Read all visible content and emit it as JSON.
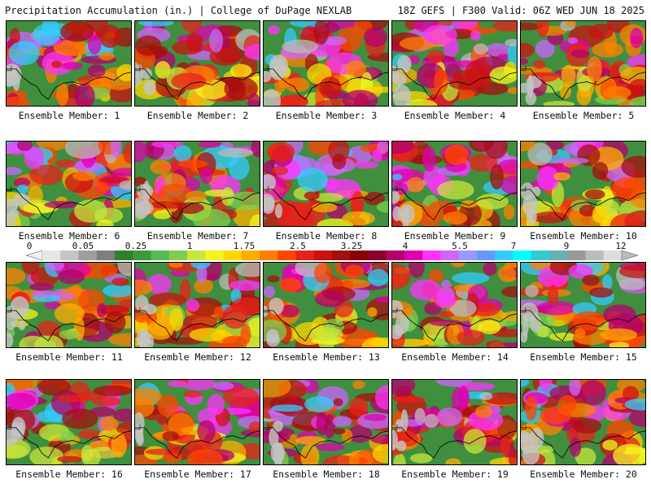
{
  "header": {
    "left_title": "Precipitation Accumulation (in.) | College of DuPage NEXLAB",
    "right_title": "18Z GEFS | F300 Valid: 06Z WED JUN 18 2025"
  },
  "panels": [
    {
      "label": "Ensemble Member: 1"
    },
    {
      "label": "Ensemble Member: 2"
    },
    {
      "label": "Ensemble Member: 3"
    },
    {
      "label": "Ensemble Member: 4"
    },
    {
      "label": "Ensemble Member: 5"
    },
    {
      "label": "Ensemble Member: 6"
    },
    {
      "label": "Ensemble Member: 7"
    },
    {
      "label": "Ensemble Member: 8"
    },
    {
      "label": "Ensemble Member: 9"
    },
    {
      "label": "Ensemble Member: 10"
    },
    {
      "label": "Ensemble Member: 11"
    },
    {
      "label": "Ensemble Member: 12"
    },
    {
      "label": "Ensemble Member: 13"
    },
    {
      "label": "Ensemble Member: 14"
    },
    {
      "label": "Ensemble Member: 15"
    },
    {
      "label": "Ensemble Member: 16"
    },
    {
      "label": "Ensemble Member: 17"
    },
    {
      "label": "Ensemble Member: 18"
    },
    {
      "label": "Ensemble Member: 19"
    },
    {
      "label": "Ensemble Member: 20"
    }
  ],
  "colorbar": {
    "labels": [
      "0",
      "0.05",
      "0.25",
      "1",
      "1.75",
      "2.5",
      "3.25",
      "4",
      "5.5",
      "7",
      "9",
      "12"
    ],
    "colors": [
      "#e6e6e6",
      "#c4c4c4",
      "#9e9e9e",
      "#7e7e7e",
      "#2f7f2f",
      "#3c9a3c",
      "#58b858",
      "#7fcf4f",
      "#c8e63c",
      "#f5f51e",
      "#ffd700",
      "#ffae00",
      "#ff8000",
      "#ff4500",
      "#e8221a",
      "#cc1111",
      "#a50f0f",
      "#8b0000",
      "#8b0033",
      "#b5006e",
      "#e000b0",
      "#ff33ff",
      "#cc66ff",
      "#9999ff",
      "#6699ff",
      "#33ccff",
      "#00ffff",
      "#33cccc",
      "#66b2b2",
      "#999999",
      "#bbbbbb",
      "#dddddd"
    ]
  }
}
